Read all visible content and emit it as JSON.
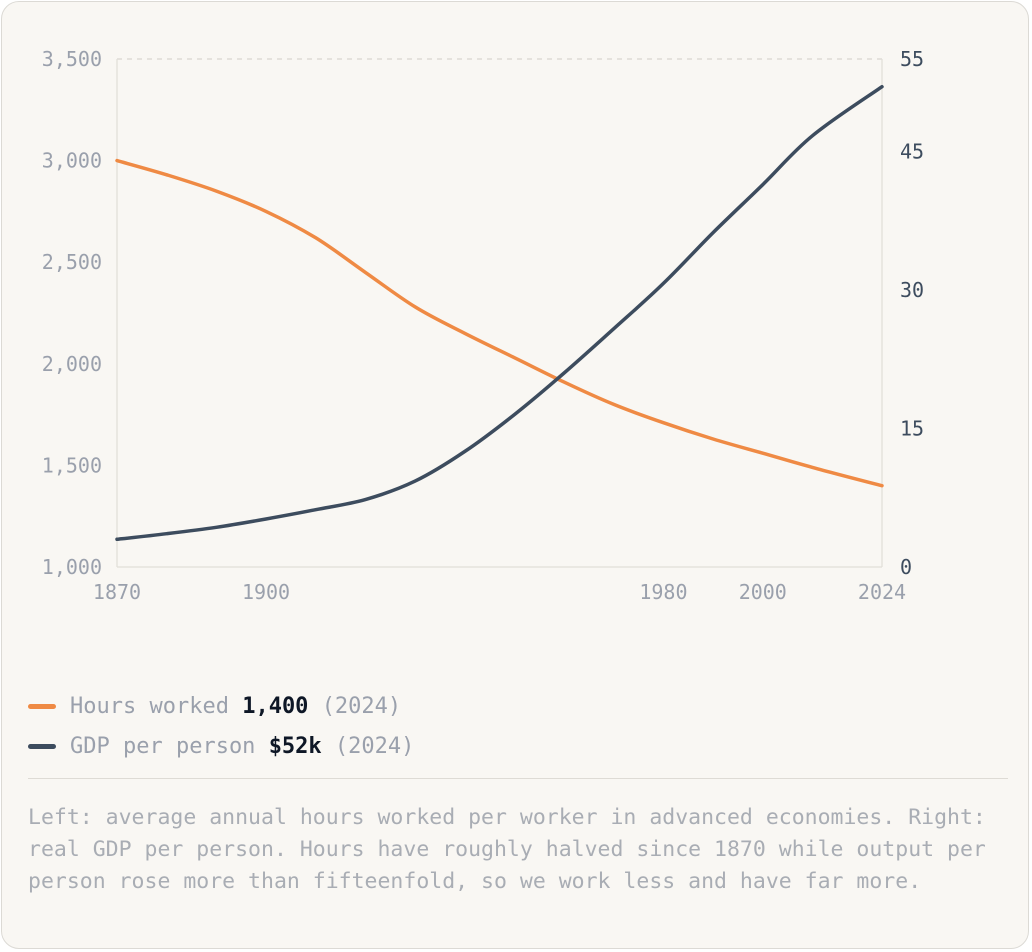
{
  "chart_data": {
    "type": "line",
    "x_ticks": [
      "1870",
      "1900",
      "1980",
      "2000",
      "2024"
    ],
    "xlim": [
      1870,
      2024
    ],
    "y_left": {
      "ticks": [
        "1,000",
        "1,500",
        "2,000",
        "2,500",
        "3,000",
        "3,500"
      ],
      "ylim": [
        1000,
        3500
      ]
    },
    "y_right": {
      "ticks": [
        "0",
        "15",
        "30",
        "45",
        "55"
      ],
      "ylim": [
        0,
        55
      ]
    },
    "grid": "dashed top line only",
    "series": [
      {
        "name": "Hours worked",
        "axis": "left",
        "color": "#ef8a44",
        "x": [
          1870,
          1880,
          1890,
          1900,
          1910,
          1920,
          1930,
          1940,
          1950,
          1960,
          1970,
          1980,
          1990,
          2000,
          2010,
          2024
        ],
        "y": [
          3000,
          2930,
          2850,
          2750,
          2620,
          2450,
          2280,
          2150,
          2030,
          1910,
          1800,
          1710,
          1630,
          1560,
          1490,
          1400
        ]
      },
      {
        "name": "GDP per person",
        "axis": "right",
        "color": "#3d4c5e",
        "x": [
          1870,
          1880,
          1890,
          1900,
          1910,
          1920,
          1930,
          1940,
          1950,
          1960,
          1970,
          1980,
          1990,
          2000,
          2010,
          2024
        ],
        "y": [
          3,
          3.6,
          4.3,
          5.2,
          6.2,
          7.3,
          9.3,
          12.5,
          16.5,
          21,
          25.8,
          30.7,
          36.2,
          41.4,
          46.7,
          52
        ]
      }
    ]
  },
  "legend": [
    {
      "label": "Hours worked",
      "value": "1,400",
      "note": "(2024)",
      "color": "#ef8a44"
    },
    {
      "label": "GDP per person",
      "value": "$52k",
      "note": "(2024)",
      "color": "#3d4c5e"
    }
  ],
  "caption": "Left: average annual hours worked per worker in advanced economies. Right: real GDP per person. Hours have roughly halved since 1870 while output per person rose more than fifteenfold, so we work less and have far more."
}
